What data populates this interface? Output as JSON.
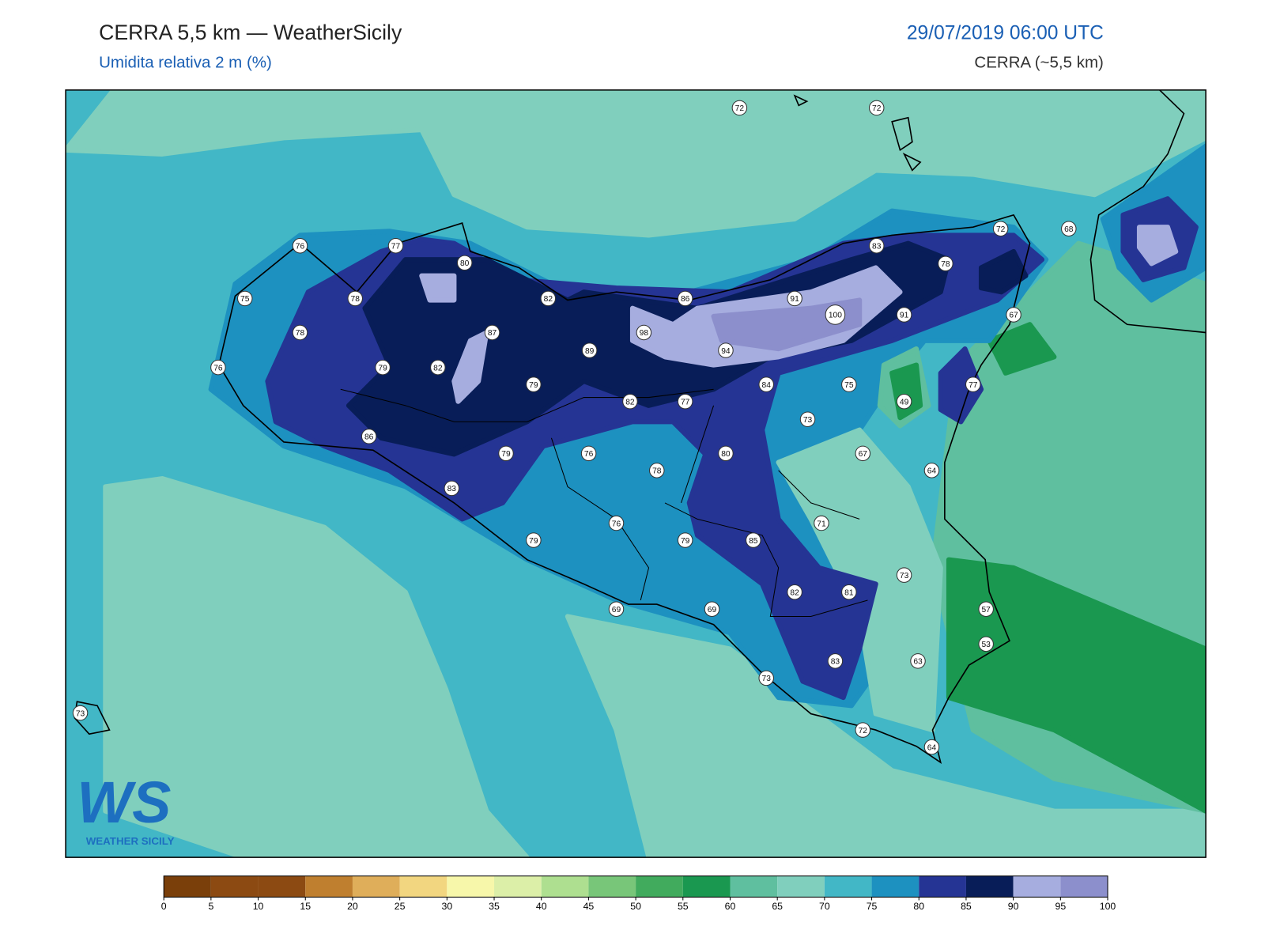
{
  "header": {
    "title": "CERRA 5,5 km — WeatherSicily",
    "subtitle": "Umidita relativa 2 m (%)",
    "date": "29/07/2019 06:00 UTC",
    "model": "CERRA (~5,5 km)"
  },
  "map": {
    "stations": [
      72,
      72,
      76,
      77,
      80,
      72,
      68,
      83,
      78,
      75,
      78,
      82,
      86,
      91,
      100,
      91,
      67,
      78,
      87,
      98,
      89,
      94,
      76,
      79,
      82,
      79,
      84,
      75,
      77,
      82,
      77,
      49,
      73,
      86,
      79,
      76,
      78,
      80,
      67,
      64,
      83,
      71,
      76,
      79,
      79,
      85,
      73,
      82,
      81,
      69,
      69,
      57,
      53,
      63,
      83,
      73,
      73,
      72,
      64
    ]
  },
  "logo": {
    "mark": "WS",
    "text": "WEATHER SICILY"
  },
  "colorbar": {
    "ticks": [
      0,
      5,
      10,
      15,
      20,
      25,
      30,
      35,
      40,
      45,
      50,
      55,
      60,
      65,
      70,
      75,
      80,
      85,
      90,
      95,
      100
    ],
    "colors": [
      "#7a3f0a",
      "#8c4a12",
      "#8c4a12",
      "#bf7f2f",
      "#dfae5a",
      "#f2d680",
      "#f7f7aa",
      "#dcefa8",
      "#aedf90",
      "#78c679",
      "#41ab5d",
      "#1a9850",
      "#5fbf9f",
      "#80cfbd",
      "#42b7c6",
      "#1d91c0",
      "#253494",
      "#081d58",
      "#a6addf",
      "#8c8fcc"
    ]
  }
}
